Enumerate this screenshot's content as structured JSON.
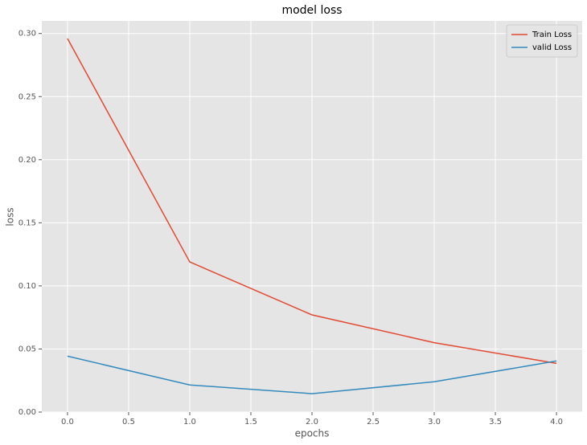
{
  "chart_data": {
    "type": "line",
    "title": "model loss",
    "x_label": "epochs",
    "y_label": "loss",
    "x": [
      0,
      1,
      2,
      3,
      4
    ],
    "series": [
      {
        "name": "Train Loss",
        "color": "#e24a33",
        "values": [
          0.296,
          0.119,
          0.077,
          0.055,
          0.0386
        ]
      },
      {
        "name": "valid Loss",
        "color": "#348abd",
        "values": [
          0.0443,
          0.0215,
          0.0146,
          0.024,
          0.0405
        ]
      }
    ],
    "xlim": [
      -0.21,
      4.21
    ],
    "ylim": [
      0,
      0.31
    ],
    "xticks": [
      {
        "value": 0,
        "label": "0.0"
      },
      {
        "value": 0.5,
        "label": "0.5"
      },
      {
        "value": 1,
        "label": "1.0"
      },
      {
        "value": 1.5,
        "label": "1.5"
      },
      {
        "value": 2,
        "label": "2.0"
      },
      {
        "value": 2.5,
        "label": "2.5"
      },
      {
        "value": 3,
        "label": "3.0"
      },
      {
        "value": 3.5,
        "label": "3.5"
      },
      {
        "value": 4,
        "label": "4.0"
      }
    ],
    "yticks": [
      {
        "value": 0,
        "label": "0.00"
      },
      {
        "value": 0.05,
        "label": "0.05"
      },
      {
        "value": 0.1,
        "label": "0.10"
      },
      {
        "value": 0.15,
        "label": "0.15"
      },
      {
        "value": 0.2,
        "label": "0.20"
      },
      {
        "value": 0.25,
        "label": "0.25"
      },
      {
        "value": 0.3,
        "label": "0.30"
      }
    ],
    "grid": true,
    "legend": "upper right"
  }
}
